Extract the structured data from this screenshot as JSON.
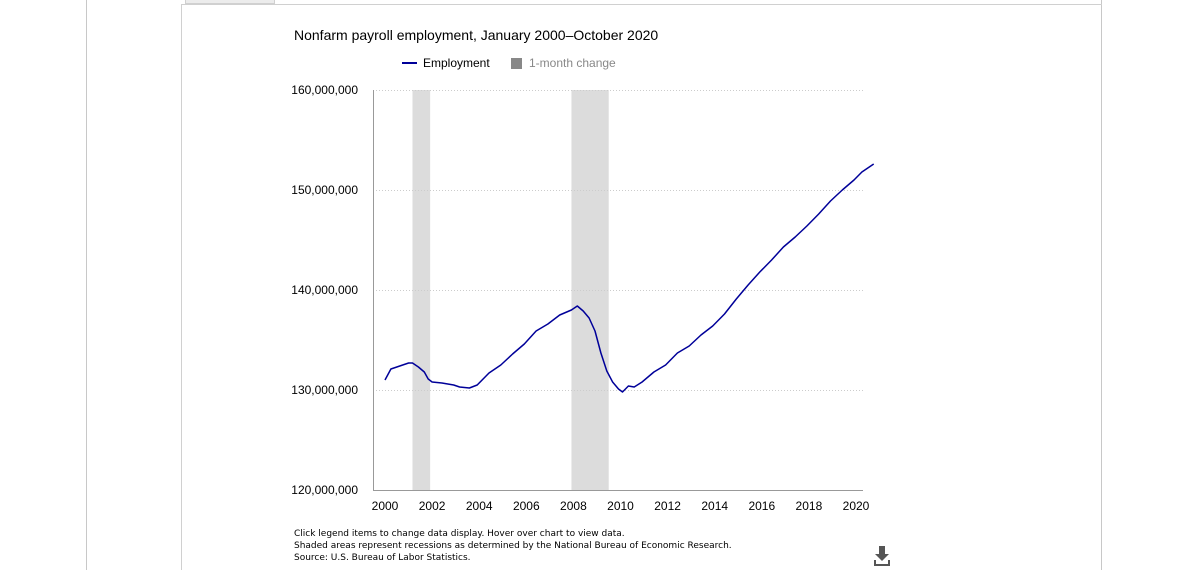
{
  "chart_data": {
    "type": "line",
    "title": "Nonfarm payroll employment, January 2000–October 2020",
    "xlabel": "",
    "ylabel": "",
    "ylim": [
      120000000,
      160000000
    ],
    "xlim": [
      "2000-01",
      "2020-10"
    ],
    "y_ticks": [
      "120,000,000",
      "130,000,000",
      "140,000,000",
      "150,000,000",
      "160,000,000"
    ],
    "x_ticks": [
      "2000",
      "2002",
      "2004",
      "2006",
      "2008",
      "2010",
      "2012",
      "2014",
      "2016",
      "2018",
      "2020"
    ],
    "grid": "horizontal dotted",
    "legend_placement": "top",
    "legend": [
      {
        "label": "Employment",
        "kind": "line",
        "color": "#000099",
        "active": true
      },
      {
        "label": "1-month change",
        "kind": "bar",
        "color": "#888888",
        "active": false
      }
    ],
    "recessions": [
      {
        "start": "2001-03",
        "end": "2001-11"
      },
      {
        "start": "2007-12",
        "end": "2009-06"
      }
    ],
    "series": [
      {
        "name": "Employment",
        "color": "#000099",
        "points": [
          [
            "2000-01",
            131000000
          ],
          [
            "2000-04",
            132100000
          ],
          [
            "2000-07",
            132300000
          ],
          [
            "2000-10",
            132500000
          ],
          [
            "2001-01",
            132700000
          ],
          [
            "2001-03",
            132700000
          ],
          [
            "2001-06",
            132300000
          ],
          [
            "2001-09",
            131800000
          ],
          [
            "2001-11",
            131100000
          ],
          [
            "2002-01",
            130800000
          ],
          [
            "2002-06",
            130700000
          ],
          [
            "2002-12",
            130500000
          ],
          [
            "2003-03",
            130300000
          ],
          [
            "2003-08",
            130200000
          ],
          [
            "2003-12",
            130500000
          ],
          [
            "2004-06",
            131700000
          ],
          [
            "2004-12",
            132500000
          ],
          [
            "2005-06",
            133600000
          ],
          [
            "2005-12",
            134600000
          ],
          [
            "2006-06",
            135900000
          ],
          [
            "2006-12",
            136600000
          ],
          [
            "2007-06",
            137500000
          ],
          [
            "2007-12",
            138000000
          ],
          [
            "2008-03",
            138400000
          ],
          [
            "2008-06",
            137900000
          ],
          [
            "2008-09",
            137200000
          ],
          [
            "2008-12",
            135900000
          ],
          [
            "2009-03",
            133700000
          ],
          [
            "2009-06",
            131900000
          ],
          [
            "2009-09",
            130800000
          ],
          [
            "2009-12",
            130100000
          ],
          [
            "2010-02",
            129800000
          ],
          [
            "2010-05",
            130400000
          ],
          [
            "2010-08",
            130300000
          ],
          [
            "2010-12",
            130800000
          ],
          [
            "2011-06",
            131800000
          ],
          [
            "2011-12",
            132500000
          ],
          [
            "2012-06",
            133700000
          ],
          [
            "2012-12",
            134400000
          ],
          [
            "2013-06",
            135500000
          ],
          [
            "2013-12",
            136400000
          ],
          [
            "2014-06",
            137600000
          ],
          [
            "2014-12",
            139100000
          ],
          [
            "2015-06",
            140500000
          ],
          [
            "2015-12",
            141800000
          ],
          [
            "2016-06",
            143000000
          ],
          [
            "2016-12",
            144300000
          ],
          [
            "2017-06",
            145300000
          ],
          [
            "2017-12",
            146400000
          ],
          [
            "2018-06",
            147600000
          ],
          [
            "2018-12",
            148900000
          ],
          [
            "2019-06",
            150000000
          ],
          [
            "2019-12",
            151000000
          ],
          [
            "2020-04",
            151800000
          ],
          [
            "2020-10",
            152600000
          ]
        ]
      }
    ]
  },
  "footnotes": {
    "line1": "Click legend items to change data display. Hover over chart to view data.",
    "line2": "Shaded areas represent recessions as determined by the National Bureau of Economic Research.",
    "line3": "Source: U.S. Bureau of Labor Statistics."
  },
  "icons": {
    "download": "download-icon"
  },
  "colors": {
    "recession_shade": "#dcdcdc",
    "grid": "#cccccc",
    "axis": "#999999"
  }
}
